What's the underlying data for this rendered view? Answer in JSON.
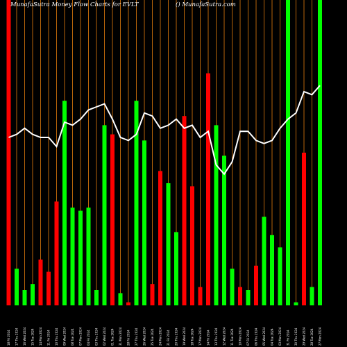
{
  "header": {
    "title_left": "MunafaSutra  Money Flow  Charts for EVLT",
    "title_right": "() MunafaSutra.com"
  },
  "colors": {
    "background": "#000000",
    "up": "#00ff00",
    "down": "#ff0000",
    "line": "#ffffff",
    "gridline": "#b8650a"
  },
  "chart_data": {
    "type": "bar",
    "title": "MunafaSutra  Money Flow  Charts for EVLT",
    "ylim": [
      0,
      100
    ],
    "grid": true,
    "legend": "none",
    "categories": [
      "18 Fri 2024",
      "17 Thu 2024",
      "16 Wed 2024",
      "15 Tue 2024",
      "14 Mon 2024",
      "11 Fri 2024",
      "10 Thu 2024",
      "09 Wed 2024",
      "08 Tue 2024",
      "07 Mon 2024",
      "04 Fri 2024",
      "03 Thu 2024",
      "02 Wed 2024",
      "01 Tue 2024",
      "31 Mon 2024",
      "28 Fri 2024",
      "27 Thu 2024",
      "26 Wed 2024",
      "25 Tue 2024",
      "24 Mon 2024",
      "21 Fri 2024",
      "20 Thu 2024",
      "19 Wed 2024",
      "18 Tue 2024",
      "17 Mon 2024",
      "14 Fri 2024",
      "13 Thu 2024",
      "12 Wed 2024",
      "11 Tue 2024",
      "10 Mon 2024",
      "07 Fri 2024",
      "06 Thu 2024",
      "05 Wed 2024",
      "04 Tue 2024",
      "03 Mon 2024",
      "31 Fri 2024",
      "30 Thu 2024",
      "29 Wed 2024",
      "28 Tue 2024",
      "27 Mon 2024"
    ],
    "series": [
      {
        "values": [
          100,
          12,
          5,
          7,
          15,
          11,
          34,
          67,
          32,
          31,
          32,
          5,
          59,
          56,
          4,
          1,
          67,
          54,
          7,
          44,
          40,
          24,
          62,
          39,
          6,
          76,
          59,
          49,
          12,
          6,
          5,
          13,
          29,
          23,
          19,
          100,
          1,
          50,
          6,
          100
        ],
        "directions": [
          "down",
          "up",
          "up",
          "up",
          "down",
          "down",
          "down",
          "up",
          "up",
          "up",
          "up",
          "up",
          "up",
          "down",
          "up",
          "down",
          "up",
          "up",
          "down",
          "down",
          "up",
          "up",
          "down",
          "down",
          "down",
          "down",
          "up",
          "up",
          "up",
          "down",
          "up",
          "down",
          "up",
          "up",
          "up",
          "up",
          "up",
          "down",
          "up",
          "up"
        ]
      },
      {
        "values": [
          55,
          56,
          58,
          56,
          55,
          55,
          52,
          60,
          59,
          61,
          64,
          65,
          66,
          61,
          55,
          54,
          56,
          63,
          62,
          58,
          59,
          61,
          58,
          59,
          55,
          57,
          46,
          43,
          47,
          57,
          57,
          54,
          53,
          54,
          58,
          61,
          63,
          70,
          69,
          72
        ]
      }
    ]
  }
}
